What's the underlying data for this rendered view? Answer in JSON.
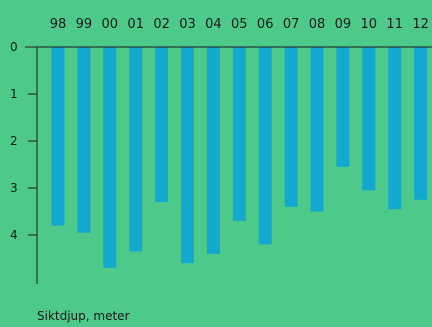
{
  "colors": {
    "background": "#4dc98a",
    "bar": "#12a8cf",
    "text": "#1a1a1a",
    "axis": "#1a1a1a",
    "page": "#ffffff"
  },
  "chart_data": {
    "type": "bar",
    "title": "",
    "xlabel": "Siktdjup, meter",
    "ylabel": "",
    "y_inverted": true,
    "category_axis_position": "top",
    "categories": [
      "98",
      "99",
      "00",
      "01",
      "02",
      "03",
      "04",
      "05",
      "06",
      "07",
      "08",
      "09",
      "10",
      "11",
      "12"
    ],
    "values": [
      3.8,
      3.95,
      4.7,
      4.35,
      3.3,
      4.6,
      4.4,
      3.7,
      4.2,
      3.4,
      3.5,
      2.55,
      3.05,
      3.45,
      3.25
    ],
    "y_ticks": [
      "0",
      "1",
      "2",
      "3",
      "4"
    ],
    "ylim": [
      0,
      5.2
    ],
    "grid": false,
    "legend": "none"
  }
}
